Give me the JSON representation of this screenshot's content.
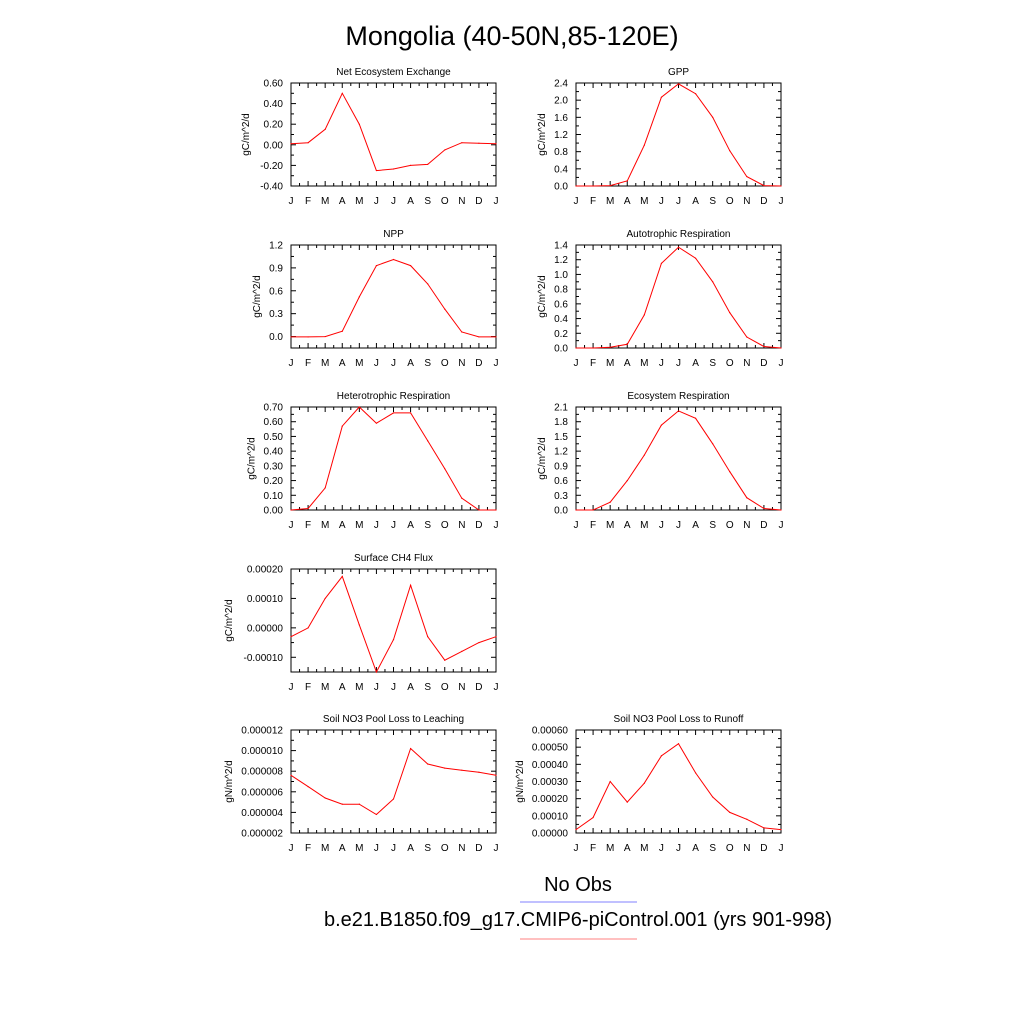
{
  "figure": {
    "title": "Mongolia (40-50N,85-120E)",
    "legend": [
      {
        "label": "No Obs",
        "color": "#0000ff"
      },
      {
        "label": "b.e21.B1850.f09_g17.CMIP6-piControl.001 (yrs 901-998)",
        "color": "#ff0000"
      }
    ],
    "line_color": "#ff0000"
  },
  "chart_data": [
    {
      "type": "line",
      "title": "Net Ecosystem Exchange",
      "ylabel": "gC/m^2/d",
      "categories": [
        "J",
        "F",
        "M",
        "A",
        "M",
        "J",
        "J",
        "A",
        "S",
        "O",
        "N",
        "D",
        "J"
      ],
      "yticks": [
        "0.60",
        "0.40",
        "0.20",
        "0.00",
        "-0.20",
        "-0.40"
      ],
      "ylim": [
        -0.4,
        0.6
      ],
      "values": [
        0.01,
        0.02,
        0.15,
        0.5,
        0.2,
        -0.25,
        -0.235,
        -0.2,
        -0.19,
        -0.05,
        0.02,
        0.015,
        0.01
      ]
    },
    {
      "type": "line",
      "title": "GPP",
      "ylabel": "gC/m^2/d",
      "categories": [
        "J",
        "F",
        "M",
        "A",
        "M",
        "J",
        "J",
        "A",
        "S",
        "O",
        "N",
        "D",
        "J"
      ],
      "yticks": [
        "2.4",
        "2.0",
        "1.6",
        "1.2",
        "0.8",
        "0.4",
        "0.0"
      ],
      "ylim": [
        0,
        2.4
      ],
      "values": [
        0.0,
        0.0,
        0.01,
        0.12,
        0.95,
        2.07,
        2.38,
        2.15,
        1.6,
        0.82,
        0.22,
        0.01,
        0.0
      ]
    },
    {
      "type": "line",
      "title": "NPP",
      "ylabel": "gC/m^2/d",
      "categories": [
        "J",
        "F",
        "M",
        "A",
        "M",
        "J",
        "J",
        "A",
        "S",
        "O",
        "N",
        "D",
        "J"
      ],
      "yticks": [
        "1.2",
        "0.9",
        "0.6",
        "0.3",
        "0.0"
      ],
      "ylim": [
        -0.15,
        1.2
      ],
      "values": [
        -0.005,
        -0.005,
        0.0,
        0.07,
        0.52,
        0.93,
        1.01,
        0.93,
        0.69,
        0.36,
        0.06,
        -0.005,
        -0.005
      ]
    },
    {
      "type": "line",
      "title": "Autotrophic Respiration",
      "ylabel": "gC/m^2/d",
      "categories": [
        "J",
        "F",
        "M",
        "A",
        "M",
        "J",
        "J",
        "A",
        "S",
        "O",
        "N",
        "D",
        "J"
      ],
      "yticks": [
        "1.4",
        "1.2",
        "1.0",
        "0.8",
        "0.6",
        "0.4",
        "0.2",
        "0.0"
      ],
      "ylim": [
        0,
        1.4
      ],
      "values": [
        0.0,
        0.0,
        0.01,
        0.05,
        0.45,
        1.15,
        1.37,
        1.22,
        0.9,
        0.48,
        0.15,
        0.02,
        0.0
      ]
    },
    {
      "type": "line",
      "title": "Heterotrophic Respiration",
      "ylabel": "gC/m^2/d",
      "categories": [
        "J",
        "F",
        "M",
        "A",
        "M",
        "J",
        "J",
        "A",
        "S",
        "O",
        "N",
        "D",
        "J"
      ],
      "yticks": [
        "0.70",
        "0.60",
        "0.50",
        "0.40",
        "0.30",
        "0.20",
        "0.10",
        "0.00"
      ],
      "ylim": [
        0,
        0.7
      ],
      "values": [
        0.0,
        0.01,
        0.15,
        0.57,
        0.7,
        0.59,
        0.66,
        0.66,
        0.47,
        0.28,
        0.08,
        0.0,
        0.0
      ]
    },
    {
      "type": "line",
      "title": "Ecosystem Respiration",
      "ylabel": "gC/m^2/d",
      "categories": [
        "J",
        "F",
        "M",
        "A",
        "M",
        "J",
        "J",
        "A",
        "S",
        "O",
        "N",
        "D",
        "J"
      ],
      "yticks": [
        "2.1",
        "1.8",
        "1.5",
        "1.2",
        "0.9",
        "0.6",
        "0.3",
        "0.0"
      ],
      "ylim": [
        0,
        2.1
      ],
      "values": [
        0.0,
        0.0,
        0.16,
        0.6,
        1.12,
        1.73,
        2.02,
        1.87,
        1.35,
        0.78,
        0.25,
        0.03,
        0.0
      ]
    },
    {
      "type": "line",
      "title": "Surface CH4 Flux",
      "ylabel": "gC/m^2/d",
      "categories": [
        "J",
        "F",
        "M",
        "A",
        "M",
        "J",
        "J",
        "A",
        "S",
        "O",
        "N",
        "D",
        "J"
      ],
      "yticks": [
        "0.00020",
        "0.00010",
        "0.00000",
        "-0.00010"
      ],
      "ylim": [
        -0.00015,
        0.0002
      ],
      "values": [
        -3e-05,
        0.0,
        0.0001,
        0.000175,
        1e-05,
        -0.00015,
        -4e-05,
        0.000145,
        -3e-05,
        -0.00011,
        -8e-05,
        -5e-05,
        -3e-05
      ]
    },
    {
      "type": "line",
      "title": "Soil NO3 Pool Loss to Leaching",
      "ylabel": "gN/m^2/d",
      "categories": [
        "J",
        "F",
        "M",
        "A",
        "M",
        "J",
        "J",
        "A",
        "S",
        "O",
        "N",
        "D",
        "J"
      ],
      "yticks": [
        "0.000012",
        "0.000010",
        "0.000008",
        "0.000006",
        "0.000004",
        "0.000002"
      ],
      "ylim": [
        2e-06,
        1.2e-05
      ],
      "values": [
        7.6e-06,
        6.5e-06,
        5.4e-06,
        4.8e-06,
        4.8e-06,
        3.8e-06,
        5.3e-06,
        1.02e-05,
        8.7e-06,
        8.3e-06,
        8.1e-06,
        7.9e-06,
        7.6e-06
      ]
    },
    {
      "type": "line",
      "title": "Soil NO3 Pool Loss to Runoff",
      "ylabel": "gN/m^2/d",
      "categories": [
        "J",
        "F",
        "M",
        "A",
        "M",
        "J",
        "J",
        "A",
        "S",
        "O",
        "N",
        "D",
        "J"
      ],
      "yticks": [
        "0.00060",
        "0.00050",
        "0.00040",
        "0.00030",
        "0.00020",
        "0.00010",
        "0.00000"
      ],
      "ylim": [
        0,
        0.0006
      ],
      "values": [
        2e-05,
        9e-05,
        0.0003,
        0.00018,
        0.00029,
        0.00045,
        0.00052,
        0.00035,
        0.00021,
        0.00012,
        8e-05,
        3e-05,
        2e-05
      ]
    }
  ]
}
